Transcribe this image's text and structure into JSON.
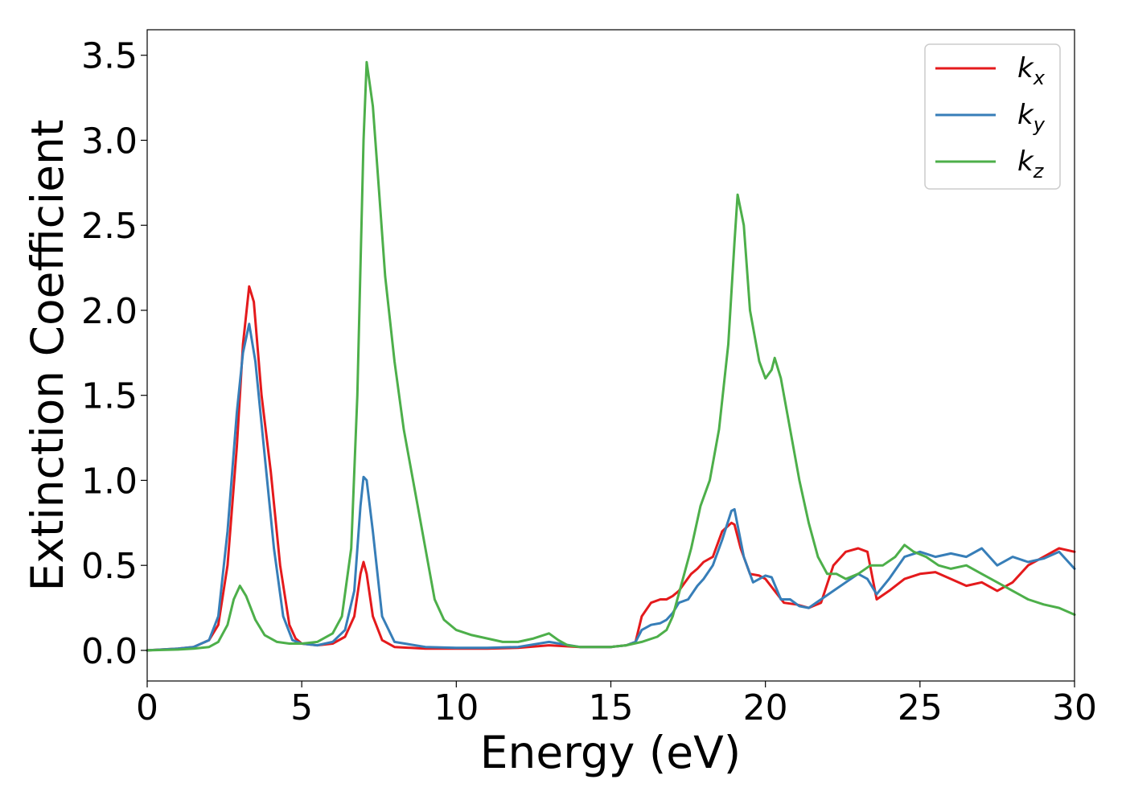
{
  "chart_data": {
    "type": "line",
    "title": "",
    "xlabel": "Energy (eV)",
    "ylabel": "Extinction Coefficient",
    "xlim": [
      0,
      30
    ],
    "ylim": [
      -0.18,
      3.65
    ],
    "xticks": [
      "0",
      "5",
      "10",
      "15",
      "20",
      "25",
      "30"
    ],
    "yticks": [
      "0.0",
      "0.5",
      "1.0",
      "1.5",
      "2.0",
      "2.5",
      "3.0",
      "3.5"
    ],
    "grid": false,
    "legend_position": "top-right",
    "series": [
      {
        "name": "k",
        "subscript": "x",
        "color": "#e41a1c",
        "x": [
          0,
          1,
          1.5,
          2,
          2.3,
          2.6,
          2.9,
          3.1,
          3.3,
          3.45,
          3.7,
          4.0,
          4.3,
          4.6,
          4.8,
          5,
          5.5,
          6,
          6.4,
          6.7,
          6.9,
          7.0,
          7.1,
          7.3,
          7.6,
          8,
          9,
          10,
          11,
          12,
          13,
          14,
          15,
          15.5,
          15.8,
          16,
          16.3,
          16.6,
          16.8,
          17.0,
          17.2,
          17.4,
          17.6,
          17.8,
          18.0,
          18.3,
          18.6,
          18.9,
          19.0,
          19.2,
          19.5,
          19.8,
          20.0,
          20.3,
          20.6,
          21.0,
          21.4,
          21.8,
          22.2,
          22.6,
          23.0,
          23.3,
          23.6,
          24.0,
          24.5,
          25,
          25.5,
          26,
          26.5,
          27,
          27.5,
          28,
          28.5,
          29,
          29.5,
          30
        ],
        "values": [
          0.0,
          0.01,
          0.02,
          0.06,
          0.15,
          0.5,
          1.2,
          1.8,
          2.14,
          2.05,
          1.5,
          1.05,
          0.5,
          0.15,
          0.07,
          0.04,
          0.03,
          0.04,
          0.08,
          0.2,
          0.45,
          0.52,
          0.45,
          0.2,
          0.06,
          0.02,
          0.01,
          0.01,
          0.01,
          0.015,
          0.03,
          0.02,
          0.02,
          0.03,
          0.05,
          0.2,
          0.28,
          0.3,
          0.3,
          0.32,
          0.35,
          0.4,
          0.45,
          0.48,
          0.52,
          0.55,
          0.7,
          0.75,
          0.74,
          0.6,
          0.45,
          0.44,
          0.42,
          0.35,
          0.28,
          0.27,
          0.25,
          0.28,
          0.5,
          0.58,
          0.6,
          0.58,
          0.3,
          0.35,
          0.42,
          0.45,
          0.46,
          0.42,
          0.38,
          0.4,
          0.35,
          0.4,
          0.5,
          0.55,
          0.6,
          0.58
        ]
      },
      {
        "name": "k",
        "subscript": "y",
        "color": "#377eb8",
        "x": [
          0,
          1,
          1.5,
          2,
          2.3,
          2.6,
          2.9,
          3.1,
          3.3,
          3.5,
          3.8,
          4.1,
          4.4,
          4.7,
          5,
          5.5,
          6,
          6.4,
          6.7,
          6.9,
          7.0,
          7.1,
          7.3,
          7.6,
          8,
          9,
          10,
          11,
          12,
          13,
          14,
          15,
          15.5,
          15.8,
          16.0,
          16.3,
          16.6,
          16.8,
          17.0,
          17.2,
          17.5,
          17.8,
          18.0,
          18.3,
          18.6,
          18.9,
          19.0,
          19.3,
          19.6,
          20.0,
          20.2,
          20.5,
          20.8,
          21.1,
          21.4,
          21.8,
          22.2,
          22.6,
          23.0,
          23.3,
          23.6,
          24.0,
          24.5,
          25,
          25.5,
          26,
          26.5,
          27,
          27.5,
          28,
          28.5,
          29,
          29.5,
          30
        ],
        "values": [
          0.0,
          0.01,
          0.02,
          0.06,
          0.2,
          0.7,
          1.4,
          1.75,
          1.92,
          1.7,
          1.15,
          0.6,
          0.2,
          0.06,
          0.04,
          0.03,
          0.05,
          0.12,
          0.35,
          0.85,
          1.02,
          1.0,
          0.7,
          0.2,
          0.05,
          0.02,
          0.015,
          0.015,
          0.02,
          0.05,
          0.02,
          0.02,
          0.03,
          0.05,
          0.12,
          0.15,
          0.16,
          0.18,
          0.22,
          0.28,
          0.3,
          0.38,
          0.42,
          0.5,
          0.65,
          0.82,
          0.83,
          0.55,
          0.4,
          0.44,
          0.43,
          0.3,
          0.3,
          0.26,
          0.25,
          0.3,
          0.35,
          0.4,
          0.45,
          0.42,
          0.33,
          0.42,
          0.55,
          0.58,
          0.55,
          0.57,
          0.55,
          0.6,
          0.5,
          0.55,
          0.52,
          0.54,
          0.58,
          0.48
        ]
      },
      {
        "name": "k",
        "subscript": "z",
        "color": "#4daf4a",
        "x": [
          0,
          1,
          1.5,
          2,
          2.3,
          2.6,
          2.8,
          3.0,
          3.2,
          3.5,
          3.8,
          4.2,
          4.6,
          5,
          5.5,
          6,
          6.3,
          6.6,
          6.8,
          7.0,
          7.1,
          7.3,
          7.5,
          7.7,
          8.0,
          8.3,
          8.7,
          9.0,
          9.3,
          9.6,
          10,
          10.5,
          11,
          11.5,
          12,
          12.5,
          13.0,
          13.3,
          13.6,
          14,
          14.5,
          15,
          15.5,
          16,
          16.5,
          16.8,
          17.0,
          17.3,
          17.6,
          17.9,
          18.2,
          18.5,
          18.8,
          19.0,
          19.1,
          19.3,
          19.5,
          19.8,
          20.0,
          20.2,
          20.3,
          20.5,
          20.8,
          21.1,
          21.4,
          21.7,
          22.0,
          22.3,
          22.6,
          23.0,
          23.4,
          23.8,
          24.2,
          24.5,
          24.8,
          25.2,
          25.6,
          26,
          26.5,
          27,
          27.5,
          28,
          28.5,
          29,
          29.5,
          30
        ],
        "values": [
          0.0,
          0.005,
          0.01,
          0.02,
          0.05,
          0.15,
          0.3,
          0.38,
          0.32,
          0.18,
          0.09,
          0.05,
          0.04,
          0.04,
          0.05,
          0.1,
          0.2,
          0.6,
          1.5,
          3.0,
          3.46,
          3.2,
          2.7,
          2.2,
          1.7,
          1.3,
          0.9,
          0.6,
          0.3,
          0.18,
          0.12,
          0.09,
          0.07,
          0.05,
          0.05,
          0.07,
          0.1,
          0.06,
          0.03,
          0.02,
          0.02,
          0.02,
          0.03,
          0.05,
          0.08,
          0.12,
          0.2,
          0.4,
          0.6,
          0.85,
          1.0,
          1.3,
          1.8,
          2.4,
          2.68,
          2.5,
          2.0,
          1.7,
          1.6,
          1.65,
          1.72,
          1.6,
          1.3,
          1.0,
          0.75,
          0.55,
          0.45,
          0.45,
          0.42,
          0.45,
          0.5,
          0.5,
          0.55,
          0.62,
          0.58,
          0.55,
          0.5,
          0.48,
          0.5,
          0.45,
          0.4,
          0.35,
          0.3,
          0.27,
          0.25,
          0.21
        ]
      }
    ]
  }
}
